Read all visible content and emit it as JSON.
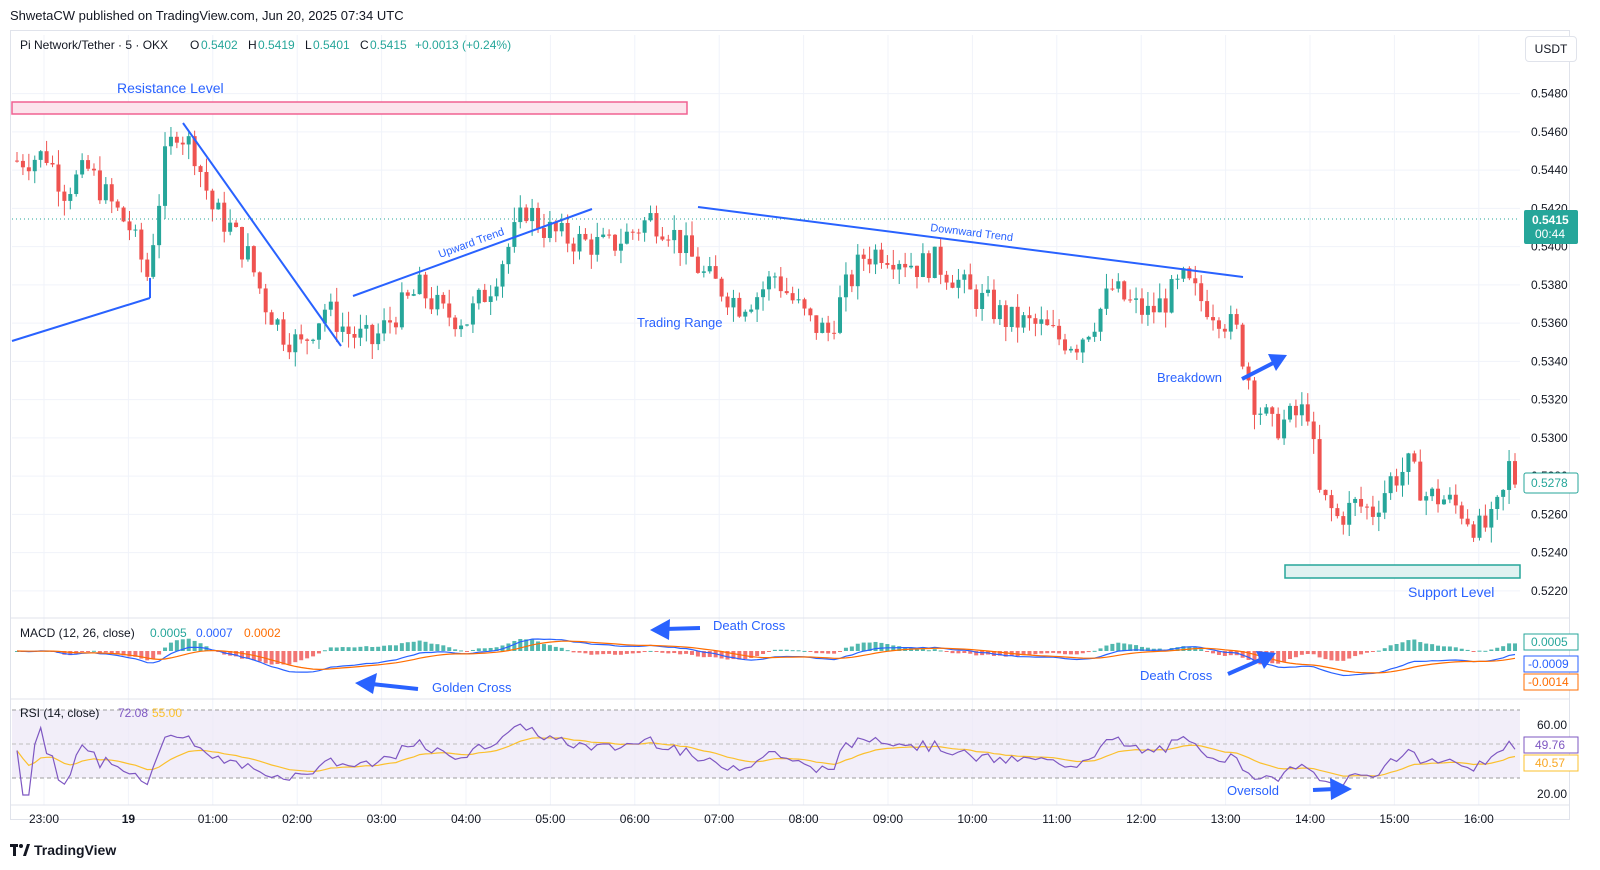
{
  "publisher": "ShwetaCW published on TradingView.com, Jun 20, 2025 07:34 UTC",
  "footer_brand": "TradingView",
  "currency": "USDT",
  "header": {
    "symbol": "Pi Network/Tether · 5 · OKX",
    "o_label": "O",
    "o_value": "0.5402",
    "h_label": "H",
    "h_value": "0.5419",
    "l_label": "L",
    "l_value": "0.5401",
    "c_label": "C",
    "c_value": "0.5415",
    "change": "+0.0013 (+0.24%)"
  },
  "colors": {
    "up": "#26a69a",
    "down": "#ef5350",
    "trend": "#2962ff",
    "annotation": "#2962ff",
    "resistance": "#f06292",
    "support": "#26a69a",
    "macd_line": "#2962ff",
    "signal_line": "#ff6d00",
    "rsi_line": "#7e57c2",
    "rsi_ma": "#fbc02d"
  },
  "chart_data": [
    {
      "type": "candlestick",
      "yaxis": {
        "min": 0.521,
        "max": 0.5495,
        "ticks": [
          "0.5480",
          "0.5460",
          "0.5440",
          "0.5420",
          "0.5400",
          "0.5380",
          "0.5360",
          "0.5340",
          "0.5320",
          "0.5300",
          "0.5280",
          "0.5260",
          "0.5240",
          "0.5220"
        ]
      },
      "xaxis": {
        "ticks": [
          "23:00",
          "19",
          "01:00",
          "02:00",
          "03:00",
          "04:00",
          "05:00",
          "06:00",
          "07:00",
          "08:00",
          "09:00",
          "10:00",
          "11:00",
          "12:00",
          "13:00",
          "14:00",
          "15:00",
          "16:00"
        ]
      },
      "last_price": "0.5415",
      "countdown": "00:44",
      "secondary_price": "0.5278",
      "annotations": {
        "resistance": "Resistance Level",
        "support": "Support Level",
        "upward": "Upward Trend",
        "downward": "Downward Trend",
        "range": "Trading Range",
        "breakdown": "Breakdown"
      },
      "anchors": [
        [
          0,
          0.5445
        ],
        [
          5,
          0.5448
        ],
        [
          8,
          0.543
        ],
        [
          12,
          0.544
        ],
        [
          16,
          0.5422
        ],
        [
          19,
          0.541
        ],
        [
          22,
          0.5385
        ],
        [
          25,
          0.5445
        ],
        [
          27,
          0.5462
        ],
        [
          30,
          0.545
        ],
        [
          33,
          0.542
        ],
        [
          36,
          0.541
        ],
        [
          39,
          0.5395
        ],
        [
          42,
          0.537
        ],
        [
          45,
          0.5355
        ],
        [
          48,
          0.5348
        ],
        [
          50,
          0.5358
        ],
        [
          52,
          0.5368
        ],
        [
          56,
          0.5355
        ],
        [
          60,
          0.535
        ],
        [
          64,
          0.5365
        ],
        [
          68,
          0.5378
        ],
        [
          72,
          0.5365
        ],
        [
          76,
          0.5362
        ],
        [
          80,
          0.538
        ],
        [
          83,
          0.54
        ],
        [
          86,
          0.542
        ],
        [
          89,
          0.541
        ],
        [
          92,
          0.5405
        ],
        [
          96,
          0.5402
        ],
        [
          100,
          0.54
        ],
        [
          104,
          0.5408
        ],
        [
          107,
          0.5415
        ],
        [
          110,
          0.541
        ],
        [
          113,
          0.5398
        ],
        [
          116,
          0.5385
        ],
        [
          119,
          0.5378
        ],
        [
          122,
          0.537
        ],
        [
          125,
          0.5375
        ],
        [
          128,
          0.5385
        ],
        [
          131,
          0.5372
        ],
        [
          134,
          0.536
        ],
        [
          137,
          0.5355
        ],
        [
          140,
          0.5378
        ],
        [
          143,
          0.5395
        ],
        [
          146,
          0.5398
        ],
        [
          149,
          0.5395
        ],
        [
          152,
          0.539
        ],
        [
          155,
          0.5392
        ],
        [
          158,
          0.5385
        ],
        [
          161,
          0.5375
        ],
        [
          164,
          0.537
        ],
        [
          167,
          0.5362
        ],
        [
          170,
          0.536
        ],
        [
          173,
          0.5358
        ],
        [
          176,
          0.5352
        ],
        [
          179,
          0.535
        ],
        [
          182,
          0.5362
        ],
        [
          185,
          0.5378
        ],
        [
          188,
          0.537
        ],
        [
          191,
          0.5365
        ],
        [
          194,
          0.5372
        ],
        [
          197,
          0.5382
        ],
        [
          200,
          0.5372
        ],
        [
          203,
          0.5365
        ],
        [
          206,
          0.5355
        ],
        [
          209,
          0.532
        ],
        [
          212,
          0.5305
        ],
        [
          215,
          0.531
        ],
        [
          218,
          0.5315
        ],
        [
          220,
          0.527
        ],
        [
          223,
          0.5258
        ],
        [
          226,
          0.5265
        ],
        [
          229,
          0.5262
        ],
        [
          232,
          0.5278
        ],
        [
          235,
          0.5285
        ],
        [
          238,
          0.527
        ],
        [
          241,
          0.5268
        ],
        [
          244,
          0.5262
        ],
        [
          247,
          0.5252
        ],
        [
          249,
          0.5255
        ],
        [
          251,
          0.527
        ],
        [
          252,
          0.5285
        ],
        [
          253,
          0.5278
        ]
      ]
    },
    {
      "type": "line",
      "title": "MACD (12, 26, close)",
      "values": [
        "0.0005",
        "0.0007",
        "0.0002"
      ],
      "axis_labels": [
        "0.0005",
        "-0.0009",
        "-0.0014"
      ],
      "annotations": {
        "death_cross_1": "Death Cross",
        "golden_cross": "Golden Cross",
        "death_cross_2": "Death Cross"
      }
    },
    {
      "type": "line",
      "title": "RSI (14, close)",
      "values": [
        "72.08",
        "55.00"
      ],
      "axis_labels": [
        "60.00",
        "49.76",
        "40.57",
        "20.00"
      ],
      "annotations": {
        "oversold": "Oversold"
      }
    }
  ]
}
